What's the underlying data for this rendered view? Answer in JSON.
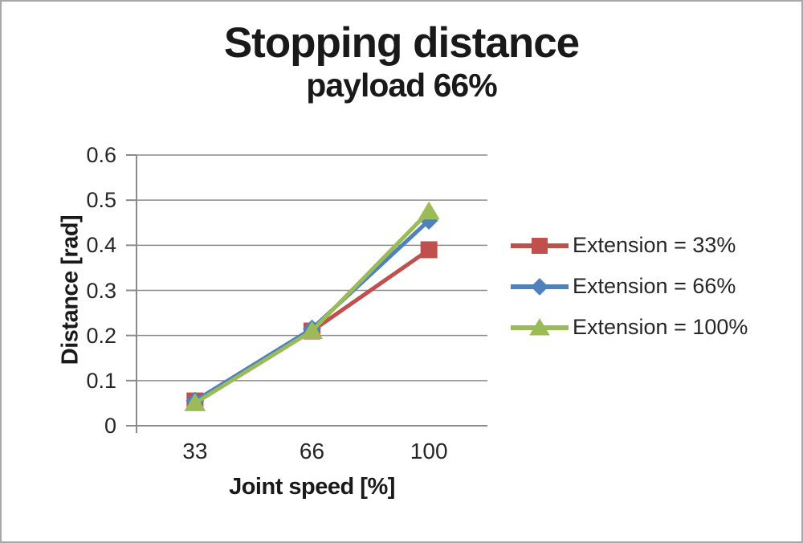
{
  "colors": {
    "grid": "#8b8b8b",
    "axis": "#8b8b8b",
    "text": "#262626",
    "title_text": "#191919",
    "frame_border": "#a8a8a8",
    "background": "#ffffff"
  },
  "chart_data": {
    "type": "line",
    "title": "Stopping distance",
    "subtitle": "payload 66%",
    "categories": [
      33,
      66,
      100
    ],
    "x_tick_labels": [
      "33",
      "66",
      "100"
    ],
    "xlabel": "Joint speed [%]",
    "ylabel": "Distance [rad]",
    "ylim": [
      0,
      0.6
    ],
    "ytick_step": 0.1,
    "yticks": [
      "0",
      "0.1",
      "0.2",
      "0.3",
      "0.4",
      "0.5",
      "0.6"
    ],
    "grid": "horizontal",
    "legend_position": "right",
    "series": [
      {
        "name": "Extension = 33%",
        "color": "#C0504D",
        "marker": "square",
        "values": [
          0.055,
          0.21,
          0.39
        ]
      },
      {
        "name": "Extension = 66%",
        "color": "#4F81BD",
        "marker": "diamond",
        "values": [
          0.055,
          0.215,
          0.455
        ]
      },
      {
        "name": "Extension = 100%",
        "color": "#9BBB59",
        "marker": "triangle",
        "values": [
          0.05,
          0.21,
          0.475
        ]
      }
    ]
  }
}
